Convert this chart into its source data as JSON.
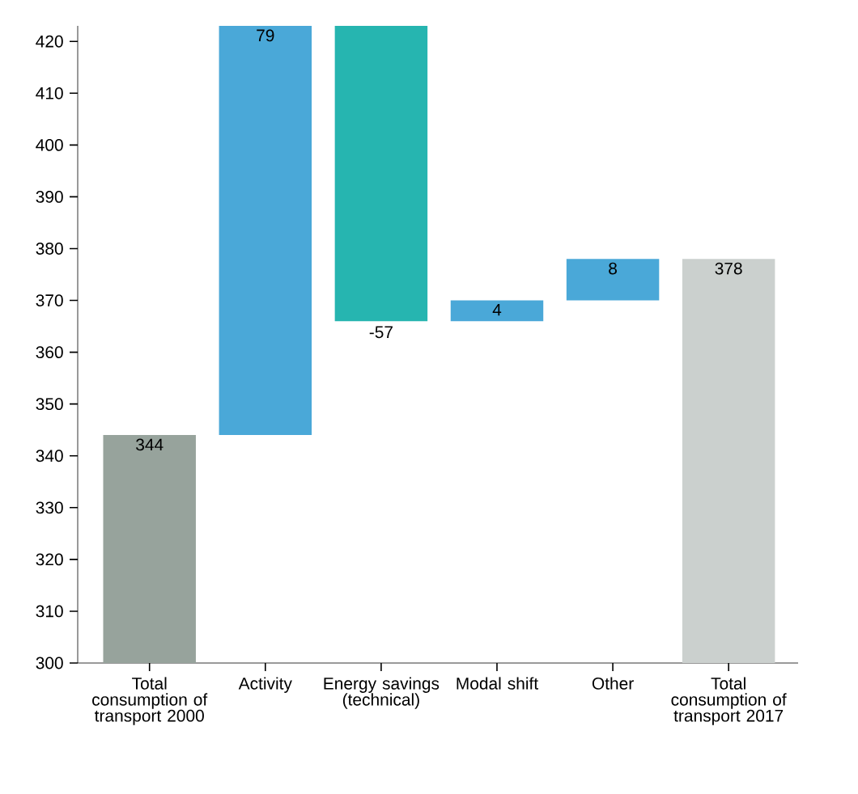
{
  "chart_data": {
    "type": "bar",
    "categories": [
      "Total consumption of transport 2000",
      "Activity",
      "Energy savings (technical)",
      "Modal shift",
      "Other",
      "Total consumption of transport 2017"
    ],
    "values": [
      344,
      79,
      -57,
      4,
      8,
      378
    ],
    "base": [
      null,
      344,
      423,
      366,
      370,
      null
    ],
    "colors": [
      "#97a39c",
      "#4aa8d8",
      "#26b5b0",
      "#4aa8d8",
      "#4aa8d8",
      "#cbd0ce"
    ],
    "ylim": [
      300,
      423
    ],
    "yticks": [
      300,
      310,
      320,
      330,
      340,
      350,
      360,
      370,
      380,
      390,
      400,
      410,
      420
    ],
    "data_labels": true
  }
}
